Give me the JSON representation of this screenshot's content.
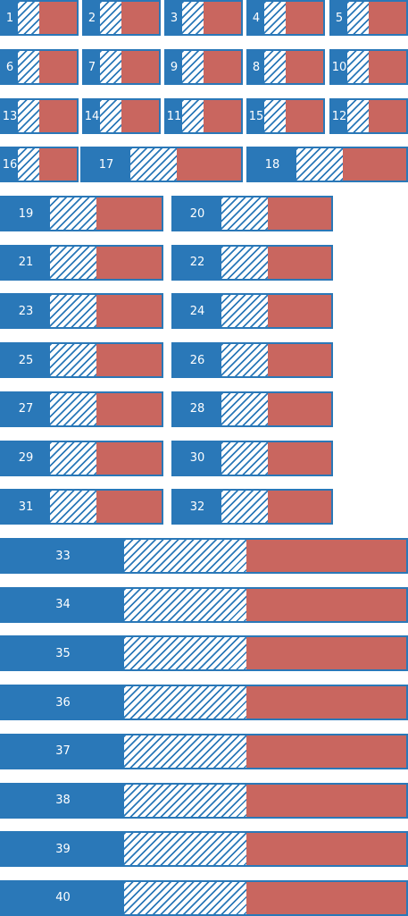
{
  "colors": {
    "blue": "#2a78b8",
    "red": "#c9665f",
    "hatch_bg": "#ffffff"
  },
  "blocks": [
    {
      "label": "1"
    },
    {
      "label": "2"
    },
    {
      "label": "3"
    },
    {
      "label": "4"
    },
    {
      "label": "5"
    },
    {
      "label": "6"
    },
    {
      "label": "7"
    },
    {
      "label": "9"
    },
    {
      "label": "8"
    },
    {
      "label": "10"
    },
    {
      "label": "13"
    },
    {
      "label": "14"
    },
    {
      "label": "11"
    },
    {
      "label": "15"
    },
    {
      "label": "12"
    },
    {
      "label": "16"
    },
    {
      "label": "17"
    },
    {
      "label": "18"
    },
    {
      "label": "19"
    },
    {
      "label": "20"
    },
    {
      "label": "21"
    },
    {
      "label": "22"
    },
    {
      "label": "23"
    },
    {
      "label": "24"
    },
    {
      "label": "25"
    },
    {
      "label": "26"
    },
    {
      "label": "27"
    },
    {
      "label": "28"
    },
    {
      "label": "29"
    },
    {
      "label": "30"
    },
    {
      "label": "31"
    },
    {
      "label": "32"
    },
    {
      "label": "33"
    },
    {
      "label": "34"
    },
    {
      "label": "35"
    },
    {
      "label": "36"
    },
    {
      "label": "37"
    },
    {
      "label": "38"
    },
    {
      "label": "39"
    },
    {
      "label": "40"
    }
  ]
}
